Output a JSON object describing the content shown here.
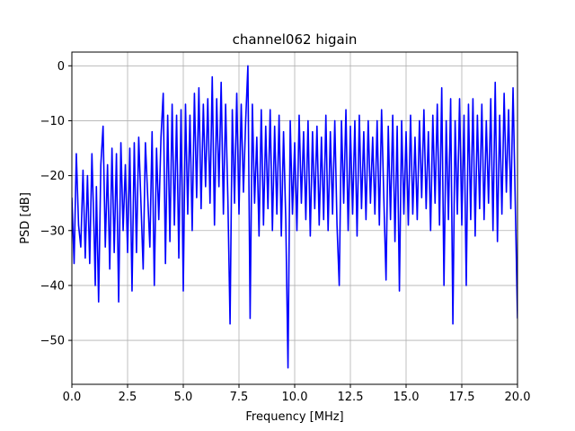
{
  "chart_data": {
    "type": "line",
    "title": "channel062 higain",
    "xlabel": "Frequency [MHz]",
    "ylabel": "PSD [dB]",
    "xlim": [
      0.0,
      20.0
    ],
    "ylim": [
      -58,
      2.5
    ],
    "xticks": [
      0.0,
      2.5,
      5.0,
      7.5,
      10.0,
      12.5,
      15.0,
      17.5,
      20.0
    ],
    "xtick_labels": [
      "0.0",
      "2.5",
      "5.0",
      "7.5",
      "10.0",
      "12.5",
      "15.0",
      "17.5",
      "20.0"
    ],
    "yticks": [
      0,
      -10,
      -20,
      -30,
      -40,
      -50
    ],
    "ytick_labels": [
      "0",
      "−10",
      "−20",
      "−30",
      "−40",
      "−50"
    ],
    "grid": true,
    "series": [
      {
        "color": "#0000ff",
        "points": [
          [
            0.0,
            -24
          ],
          [
            0.1,
            -36
          ],
          [
            0.2,
            -16
          ],
          [
            0.3,
            -29
          ],
          [
            0.4,
            -33
          ],
          [
            0.5,
            -19
          ],
          [
            0.6,
            -35
          ],
          [
            0.7,
            -20
          ],
          [
            0.8,
            -36
          ],
          [
            0.9,
            -16
          ],
          [
            1.0,
            -31
          ],
          [
            1.05,
            -40
          ],
          [
            1.1,
            -22
          ],
          [
            1.2,
            -43
          ],
          [
            1.3,
            -18
          ],
          [
            1.4,
            -11
          ],
          [
            1.5,
            -33
          ],
          [
            1.6,
            -18
          ],
          [
            1.7,
            -37
          ],
          [
            1.8,
            -15
          ],
          [
            1.9,
            -34
          ],
          [
            2.0,
            -16
          ],
          [
            2.1,
            -43
          ],
          [
            2.2,
            -14
          ],
          [
            2.3,
            -30
          ],
          [
            2.4,
            -18
          ],
          [
            2.5,
            -34
          ],
          [
            2.6,
            -15
          ],
          [
            2.7,
            -41
          ],
          [
            2.8,
            -14
          ],
          [
            2.9,
            -34
          ],
          [
            3.0,
            -13
          ],
          [
            3.2,
            -37
          ],
          [
            3.3,
            -14
          ],
          [
            3.5,
            -33
          ],
          [
            3.6,
            -12
          ],
          [
            3.7,
            -40
          ],
          [
            3.8,
            -15
          ],
          [
            3.9,
            -28
          ],
          [
            4.0,
            -13
          ],
          [
            4.1,
            -5
          ],
          [
            4.2,
            -36
          ],
          [
            4.3,
            -9
          ],
          [
            4.4,
            -32
          ],
          [
            4.5,
            -7
          ],
          [
            4.6,
            -29
          ],
          [
            4.7,
            -9
          ],
          [
            4.8,
            -35
          ],
          [
            4.9,
            -8
          ],
          [
            5.0,
            -41
          ],
          [
            5.1,
            -7
          ],
          [
            5.2,
            -27
          ],
          [
            5.3,
            -9
          ],
          [
            5.4,
            -30
          ],
          [
            5.5,
            -5
          ],
          [
            5.6,
            -24
          ],
          [
            5.7,
            -4
          ],
          [
            5.8,
            -26
          ],
          [
            5.9,
            -7
          ],
          [
            6.0,
            -22
          ],
          [
            6.1,
            -6
          ],
          [
            6.2,
            -25
          ],
          [
            6.3,
            -2
          ],
          [
            6.4,
            -29
          ],
          [
            6.5,
            -6
          ],
          [
            6.6,
            -22
          ],
          [
            6.7,
            -3
          ],
          [
            6.8,
            -27
          ],
          [
            6.9,
            -7
          ],
          [
            7.0,
            -24
          ],
          [
            7.1,
            -47
          ],
          [
            7.2,
            -8
          ],
          [
            7.3,
            -25
          ],
          [
            7.4,
            -5
          ],
          [
            7.5,
            -27
          ],
          [
            7.6,
            -7
          ],
          [
            7.7,
            -23
          ],
          [
            7.8,
            -10
          ],
          [
            7.9,
            0
          ],
          [
            8.0,
            -46
          ],
          [
            8.1,
            -7
          ],
          [
            8.2,
            -25
          ],
          [
            8.3,
            -13
          ],
          [
            8.4,
            -31
          ],
          [
            8.5,
            -8
          ],
          [
            8.6,
            -29
          ],
          [
            8.7,
            -11
          ],
          [
            8.8,
            -26
          ],
          [
            8.9,
            -8
          ],
          [
            9.0,
            -30
          ],
          [
            9.1,
            -11
          ],
          [
            9.2,
            -27
          ],
          [
            9.3,
            -9
          ],
          [
            9.4,
            -31
          ],
          [
            9.5,
            -12
          ],
          [
            9.6,
            -28
          ],
          [
            9.7,
            -55
          ],
          [
            9.8,
            -10
          ],
          [
            9.9,
            -27
          ],
          [
            10.0,
            -14
          ],
          [
            10.1,
            -30
          ],
          [
            10.2,
            -9
          ],
          [
            10.3,
            -25
          ],
          [
            10.4,
            -12
          ],
          [
            10.5,
            -28
          ],
          [
            10.6,
            -10
          ],
          [
            10.7,
            -31
          ],
          [
            10.8,
            -12
          ],
          [
            10.9,
            -26
          ],
          [
            11.0,
            -11
          ],
          [
            11.1,
            -29
          ],
          [
            11.2,
            -13
          ],
          [
            11.3,
            -28
          ],
          [
            11.4,
            -9
          ],
          [
            11.5,
            -30
          ],
          [
            11.6,
            -12
          ],
          [
            11.7,
            -27
          ],
          [
            11.8,
            -10
          ],
          [
            11.9,
            -29
          ],
          [
            12.0,
            -40
          ],
          [
            12.1,
            -10
          ],
          [
            12.2,
            -25
          ],
          [
            12.3,
            -8
          ],
          [
            12.4,
            -30
          ],
          [
            12.5,
            -11
          ],
          [
            12.6,
            -27
          ],
          [
            12.7,
            -10
          ],
          [
            12.8,
            -31
          ],
          [
            12.9,
            -9
          ],
          [
            13.0,
            -26
          ],
          [
            13.1,
            -12
          ],
          [
            13.2,
            -28
          ],
          [
            13.3,
            -10
          ],
          [
            13.4,
            -25
          ],
          [
            13.5,
            -13
          ],
          [
            13.6,
            -27
          ],
          [
            13.7,
            -10
          ],
          [
            13.8,
            -29
          ],
          [
            13.9,
            -8
          ],
          [
            14.0,
            -24
          ],
          [
            14.1,
            -39
          ],
          [
            14.2,
            -11
          ],
          [
            14.3,
            -28
          ],
          [
            14.4,
            -9
          ],
          [
            14.5,
            -32
          ],
          [
            14.6,
            -11
          ],
          [
            14.7,
            -41
          ],
          [
            14.8,
            -10
          ],
          [
            14.9,
            -27
          ],
          [
            15.0,
            -12
          ],
          [
            15.1,
            -29
          ],
          [
            15.2,
            -9
          ],
          [
            15.3,
            -27
          ],
          [
            15.4,
            -13
          ],
          [
            15.5,
            -28
          ],
          [
            15.6,
            -10
          ],
          [
            15.7,
            -24
          ],
          [
            15.8,
            -8
          ],
          [
            15.9,
            -26
          ],
          [
            16.0,
            -12
          ],
          [
            16.1,
            -30
          ],
          [
            16.2,
            -9
          ],
          [
            16.3,
            -25
          ],
          [
            16.4,
            -7
          ],
          [
            16.5,
            -29
          ],
          [
            16.6,
            -4
          ],
          [
            16.7,
            -40
          ],
          [
            16.8,
            -10
          ],
          [
            16.9,
            -28
          ],
          [
            17.0,
            -6
          ],
          [
            17.1,
            -47
          ],
          [
            17.2,
            -10
          ],
          [
            17.3,
            -27
          ],
          [
            17.4,
            -6
          ],
          [
            17.5,
            -29
          ],
          [
            17.6,
            -9
          ],
          [
            17.7,
            -40
          ],
          [
            17.8,
            -7
          ],
          [
            17.9,
            -28
          ],
          [
            18.0,
            -6
          ],
          [
            18.1,
            -31
          ],
          [
            18.2,
            -9
          ],
          [
            18.3,
            -26
          ],
          [
            18.4,
            -7
          ],
          [
            18.5,
            -28
          ],
          [
            18.6,
            -10
          ],
          [
            18.7,
            -25
          ],
          [
            18.8,
            -6
          ],
          [
            18.9,
            -30
          ],
          [
            19.0,
            -3
          ],
          [
            19.1,
            -32
          ],
          [
            19.2,
            -9
          ],
          [
            19.3,
            -27
          ],
          [
            19.4,
            -5
          ],
          [
            19.5,
            -23
          ],
          [
            19.6,
            -8
          ],
          [
            19.7,
            -26
          ],
          [
            19.8,
            -4
          ],
          [
            19.9,
            -25
          ],
          [
            20.0,
            -46
          ]
        ]
      }
    ]
  }
}
